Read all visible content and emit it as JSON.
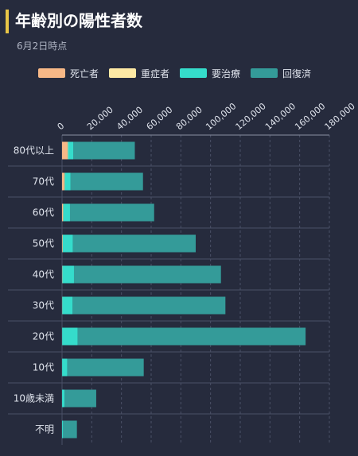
{
  "header": {
    "title": "年齢別の陽性者数",
    "subtitle": "6月2日時点"
  },
  "colors": {
    "background": "#262b3d",
    "accent": "#e8c547",
    "grid": "#4a5066"
  },
  "chart_data": {
    "type": "bar",
    "orientation": "horizontal",
    "stacked": true,
    "categories": [
      "80代以上",
      "70代",
      "60代",
      "50代",
      "40代",
      "30代",
      "20代",
      "10代",
      "10歳未満",
      "不明"
    ],
    "series": [
      {
        "name": "死亡者",
        "color": "#f7b887",
        "values": [
          3600,
          1500,
          600,
          300,
          150,
          100,
          50,
          30,
          10,
          20
        ]
      },
      {
        "name": "重症者",
        "color": "#fde9a4",
        "values": [
          400,
          300,
          250,
          150,
          80,
          50,
          30,
          10,
          5,
          10
        ]
      },
      {
        "name": "要治療",
        "color": "#35dccb",
        "values": [
          3500,
          4000,
          4500,
          6900,
          7800,
          7000,
          10500,
          3500,
          1600,
          700
        ]
      },
      {
        "name": "回復済",
        "color": "#349b99",
        "values": [
          41500,
          48700,
          56650,
          82650,
          98970,
          102850,
          153420,
          51460,
          21385,
          9270
        ]
      }
    ],
    "xlim": [
      0,
      180000
    ],
    "xticks": [
      "0",
      "20,000",
      "40,000",
      "60,000",
      "80,000",
      "100,000",
      "120,000",
      "140,000",
      "160,000",
      "180,000"
    ],
    "xtick_values": [
      0,
      20000,
      40000,
      60000,
      80000,
      100000,
      120000,
      140000,
      160000,
      180000
    ],
    "grid": true,
    "legend": "top-center"
  }
}
